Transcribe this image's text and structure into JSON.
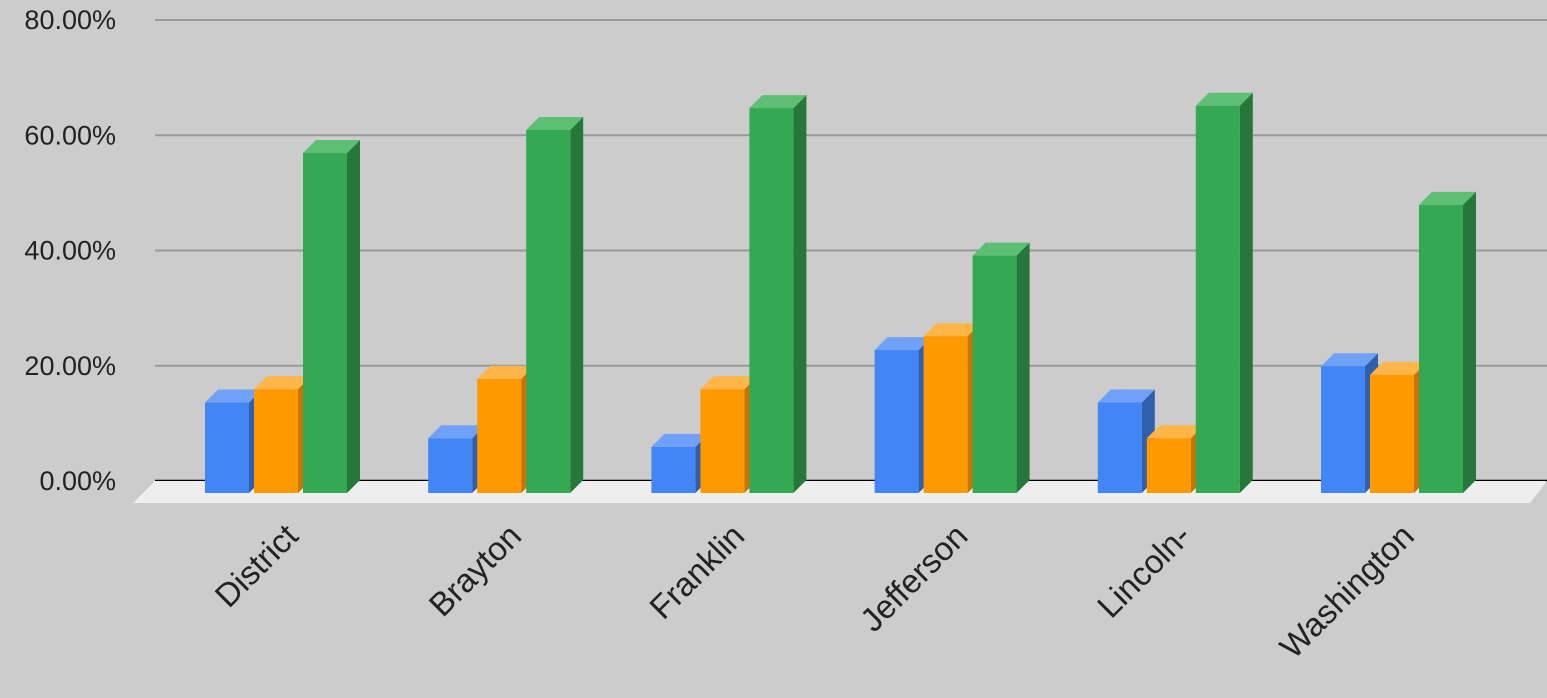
{
  "chart_data": {
    "type": "bar",
    "title": "",
    "xlabel": "",
    "ylabel": "",
    "categories": [
      "District",
      "Brayton",
      "Franklin",
      "Jefferson",
      "Lincoln-",
      "Washington"
    ],
    "series": [
      {
        "values": [
          0.157,
          0.095,
          0.08,
          0.248,
          0.157,
          0.22
        ]
      },
      {
        "values": [
          0.18,
          0.198,
          0.18,
          0.272,
          0.095,
          0.205
        ]
      },
      {
        "values": [
          0.59,
          0.63,
          0.668,
          0.412,
          0.672,
          0.5
        ]
      }
    ],
    "ylim": [
      0,
      0.8
    ],
    "yticks": [
      {
        "value": 0.0,
        "label": "0.00%"
      },
      {
        "value": 0.2,
        "label": "20.00%"
      },
      {
        "value": 0.4,
        "label": "40.00%"
      },
      {
        "value": 0.6,
        "label": "60.00%"
      },
      {
        "value": 0.8,
        "label": "80.00%"
      }
    ],
    "grid": true,
    "legend": "none",
    "style": "3d",
    "colors": {
      "series": [
        "#4285f4",
        "#ff9900",
        "#34a853"
      ],
      "series_side": [
        "#2f5fad",
        "#c77400",
        "#25773a"
      ],
      "series_top": [
        "#6ea1f7",
        "#ffb547",
        "#5cbf74"
      ],
      "background": "#cccccc",
      "gridline": "#999999",
      "baseline": "#000000",
      "floor": "#eeeeee",
      "text": "#222222"
    }
  }
}
